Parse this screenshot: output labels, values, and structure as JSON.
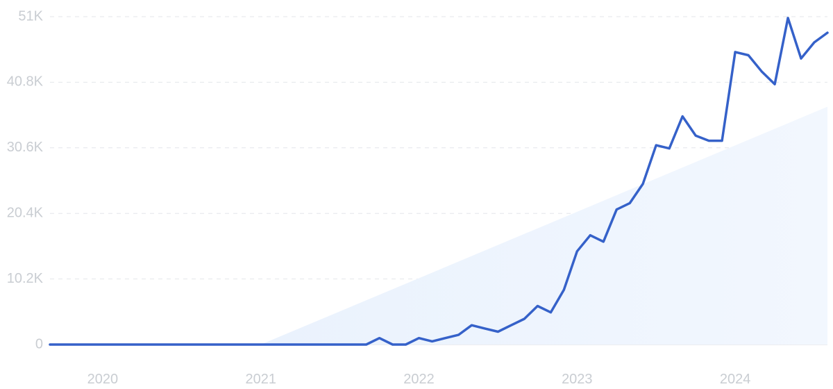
{
  "chart_data": {
    "type": "line",
    "title": "",
    "xlabel": "",
    "ylabel": "",
    "grid": true,
    "legend": "none",
    "ylim": [
      0,
      51000
    ],
    "xlim": [
      "2019-09",
      "2024-08"
    ],
    "y_ticks": [
      {
        "value": 0,
        "label": "0"
      },
      {
        "value": 10200,
        "label": "10.2K"
      },
      {
        "value": 20400,
        "label": "20.4K"
      },
      {
        "value": 30600,
        "label": "30.6K"
      },
      {
        "value": 40800,
        "label": "40.8K"
      },
      {
        "value": 51000,
        "label": "51K"
      }
    ],
    "x_ticks": [
      {
        "value": "2020-01",
        "label": "2020"
      },
      {
        "value": "2021-01",
        "label": "2021"
      },
      {
        "value": "2022-01",
        "label": "2022"
      },
      {
        "value": "2023-01",
        "label": "2023"
      },
      {
        "value": "2024-01",
        "label": "2024"
      }
    ],
    "colors": {
      "line": "#3561c9",
      "trend_fill_start": "#eaf2fd",
      "trend_fill_end": "#f2f7fe"
    },
    "trend": {
      "x": [
        "2021-01",
        "2024-08"
      ],
      "y": [
        0,
        37000
      ]
    },
    "series": [
      {
        "x": [
          "2019-09",
          "2021-09",
          "2021-10",
          "2021-11",
          "2021-12",
          "2022-01",
          "2022-02",
          "2022-03",
          "2022-04",
          "2022-05",
          "2022-06",
          "2022-07",
          "2022-08",
          "2022-09",
          "2022-10",
          "2022-11",
          "2022-12",
          "2023-01",
          "2023-02",
          "2023-03",
          "2023-04",
          "2023-05",
          "2023-06",
          "2023-07",
          "2023-08",
          "2023-09",
          "2023-10",
          "2023-11",
          "2023-12",
          "2024-01",
          "2024-02",
          "2024-03",
          "2024-04",
          "2024-05",
          "2024-06",
          "2024-07",
          "2024-08"
        ],
        "y": [
          0,
          0,
          1000,
          0,
          0,
          1000,
          500,
          1000,
          1500,
          3000,
          2500,
          2000,
          3000,
          4000,
          6000,
          5000,
          8500,
          14500,
          17000,
          16000,
          21000,
          22000,
          25000,
          31000,
          30500,
          35500,
          32500,
          31700,
          31700,
          45500,
          45000,
          42500,
          40500,
          50800,
          44500,
          47000,
          48500
        ]
      }
    ]
  }
}
